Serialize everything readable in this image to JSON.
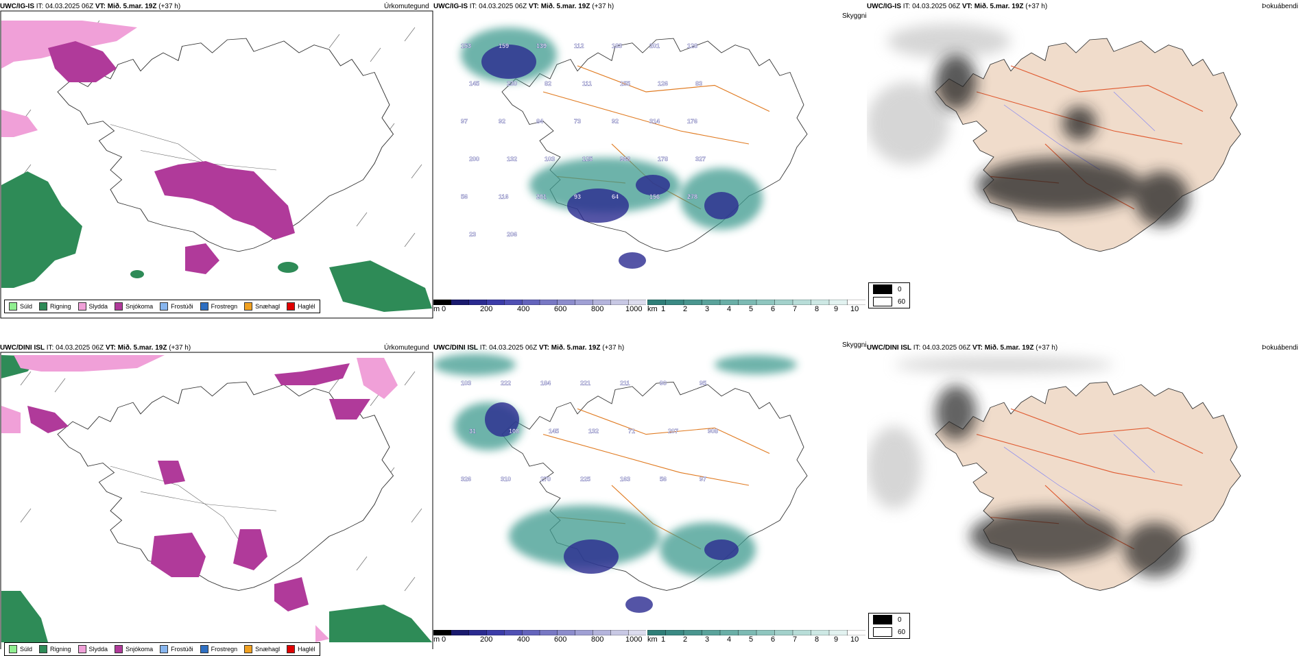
{
  "rows": [
    {
      "model": "UWC/IG-IS",
      "time_text": "IT: 04.03.2025 06Z",
      "vt_label": "VT:",
      "vt_value": "Mið. 5.mar. 19Z",
      "lead": "(+37 h)",
      "panel_titles": {
        "precip": "Úrkomutegund",
        "visibility": "Skyggni",
        "cloud": "Þokuábendi"
      },
      "labels": [
        "153",
        "159",
        "139",
        "112",
        "183",
        "201",
        "128",
        "145",
        "230",
        "82",
        "111",
        "155",
        "126",
        "83",
        "97",
        "92",
        "84",
        "73",
        "92",
        "314",
        "176",
        "200",
        "132",
        "103",
        "125",
        "968",
        "178",
        "327",
        "56",
        "116",
        "201",
        "93",
        "64",
        "156",
        "278",
        "23",
        "206"
      ]
    },
    {
      "model": "UWC/DINI ISL",
      "time_text": "IT: 04.03.2025 06Z",
      "vt_label": "VT:",
      "vt_value": "Mið. 5.mar. 19Z",
      "lead": "(+37 h)",
      "panel_titles": {
        "precip": "Úrkomutegund",
        "visibility": "Skyggni",
        "cloud": "Þokuábendi"
      },
      "labels": [
        "103",
        "222",
        "184",
        "221",
        "211",
        "90",
        "95",
        "31",
        "108",
        "145",
        "132",
        "71",
        "207",
        "908",
        "326",
        "310",
        "270",
        "225",
        "163",
        "56",
        "97"
      ]
    }
  ],
  "precip_legend": [
    {
      "label": "Súld",
      "color": "#90ee90"
    },
    {
      "label": "Rigning",
      "color": "#2e8b57"
    },
    {
      "label": "Slydda",
      "color": "#f0a0d8"
    },
    {
      "label": "Snjókoma",
      "color": "#b03a9a"
    },
    {
      "label": "Frostúði",
      "color": "#87b5ee"
    },
    {
      "label": "Frostregn",
      "color": "#2e6fc2"
    },
    {
      "label": "Snæhagl",
      "color": "#f0a020"
    },
    {
      "label": "Haglél",
      "color": "#e00000"
    }
  ],
  "ceiling_bar": {
    "unit": "m",
    "ticks": [
      "0",
      "200",
      "400",
      "600",
      "800",
      "1000"
    ],
    "colors": [
      "#000000",
      "#1a1a6e",
      "#2a2a90",
      "#3c3ca8",
      "#5050b4",
      "#6464bc",
      "#7878c4",
      "#8c8ccc",
      "#a0a0d4",
      "#b4b4dc",
      "#c8c8e4",
      "#dcdcee"
    ]
  },
  "vis_bar": {
    "unit": "km",
    "ticks": [
      "1",
      "2",
      "3",
      "4",
      "5",
      "6",
      "7",
      "8",
      "9",
      "10"
    ],
    "colors": [
      "#2f7e78",
      "#3b8a84",
      "#4a968f",
      "#5aa39b",
      "#6aafa7",
      "#7cbab3",
      "#8fc6bf",
      "#a3d1cb",
      "#b8ddd8",
      "#cde8e4",
      "#e2f2f0",
      "#ffffff"
    ]
  },
  "cloud_legend": [
    {
      "label": "0",
      "color": "#000000"
    },
    {
      "label": "60",
      "color": "#ffffff"
    }
  ]
}
